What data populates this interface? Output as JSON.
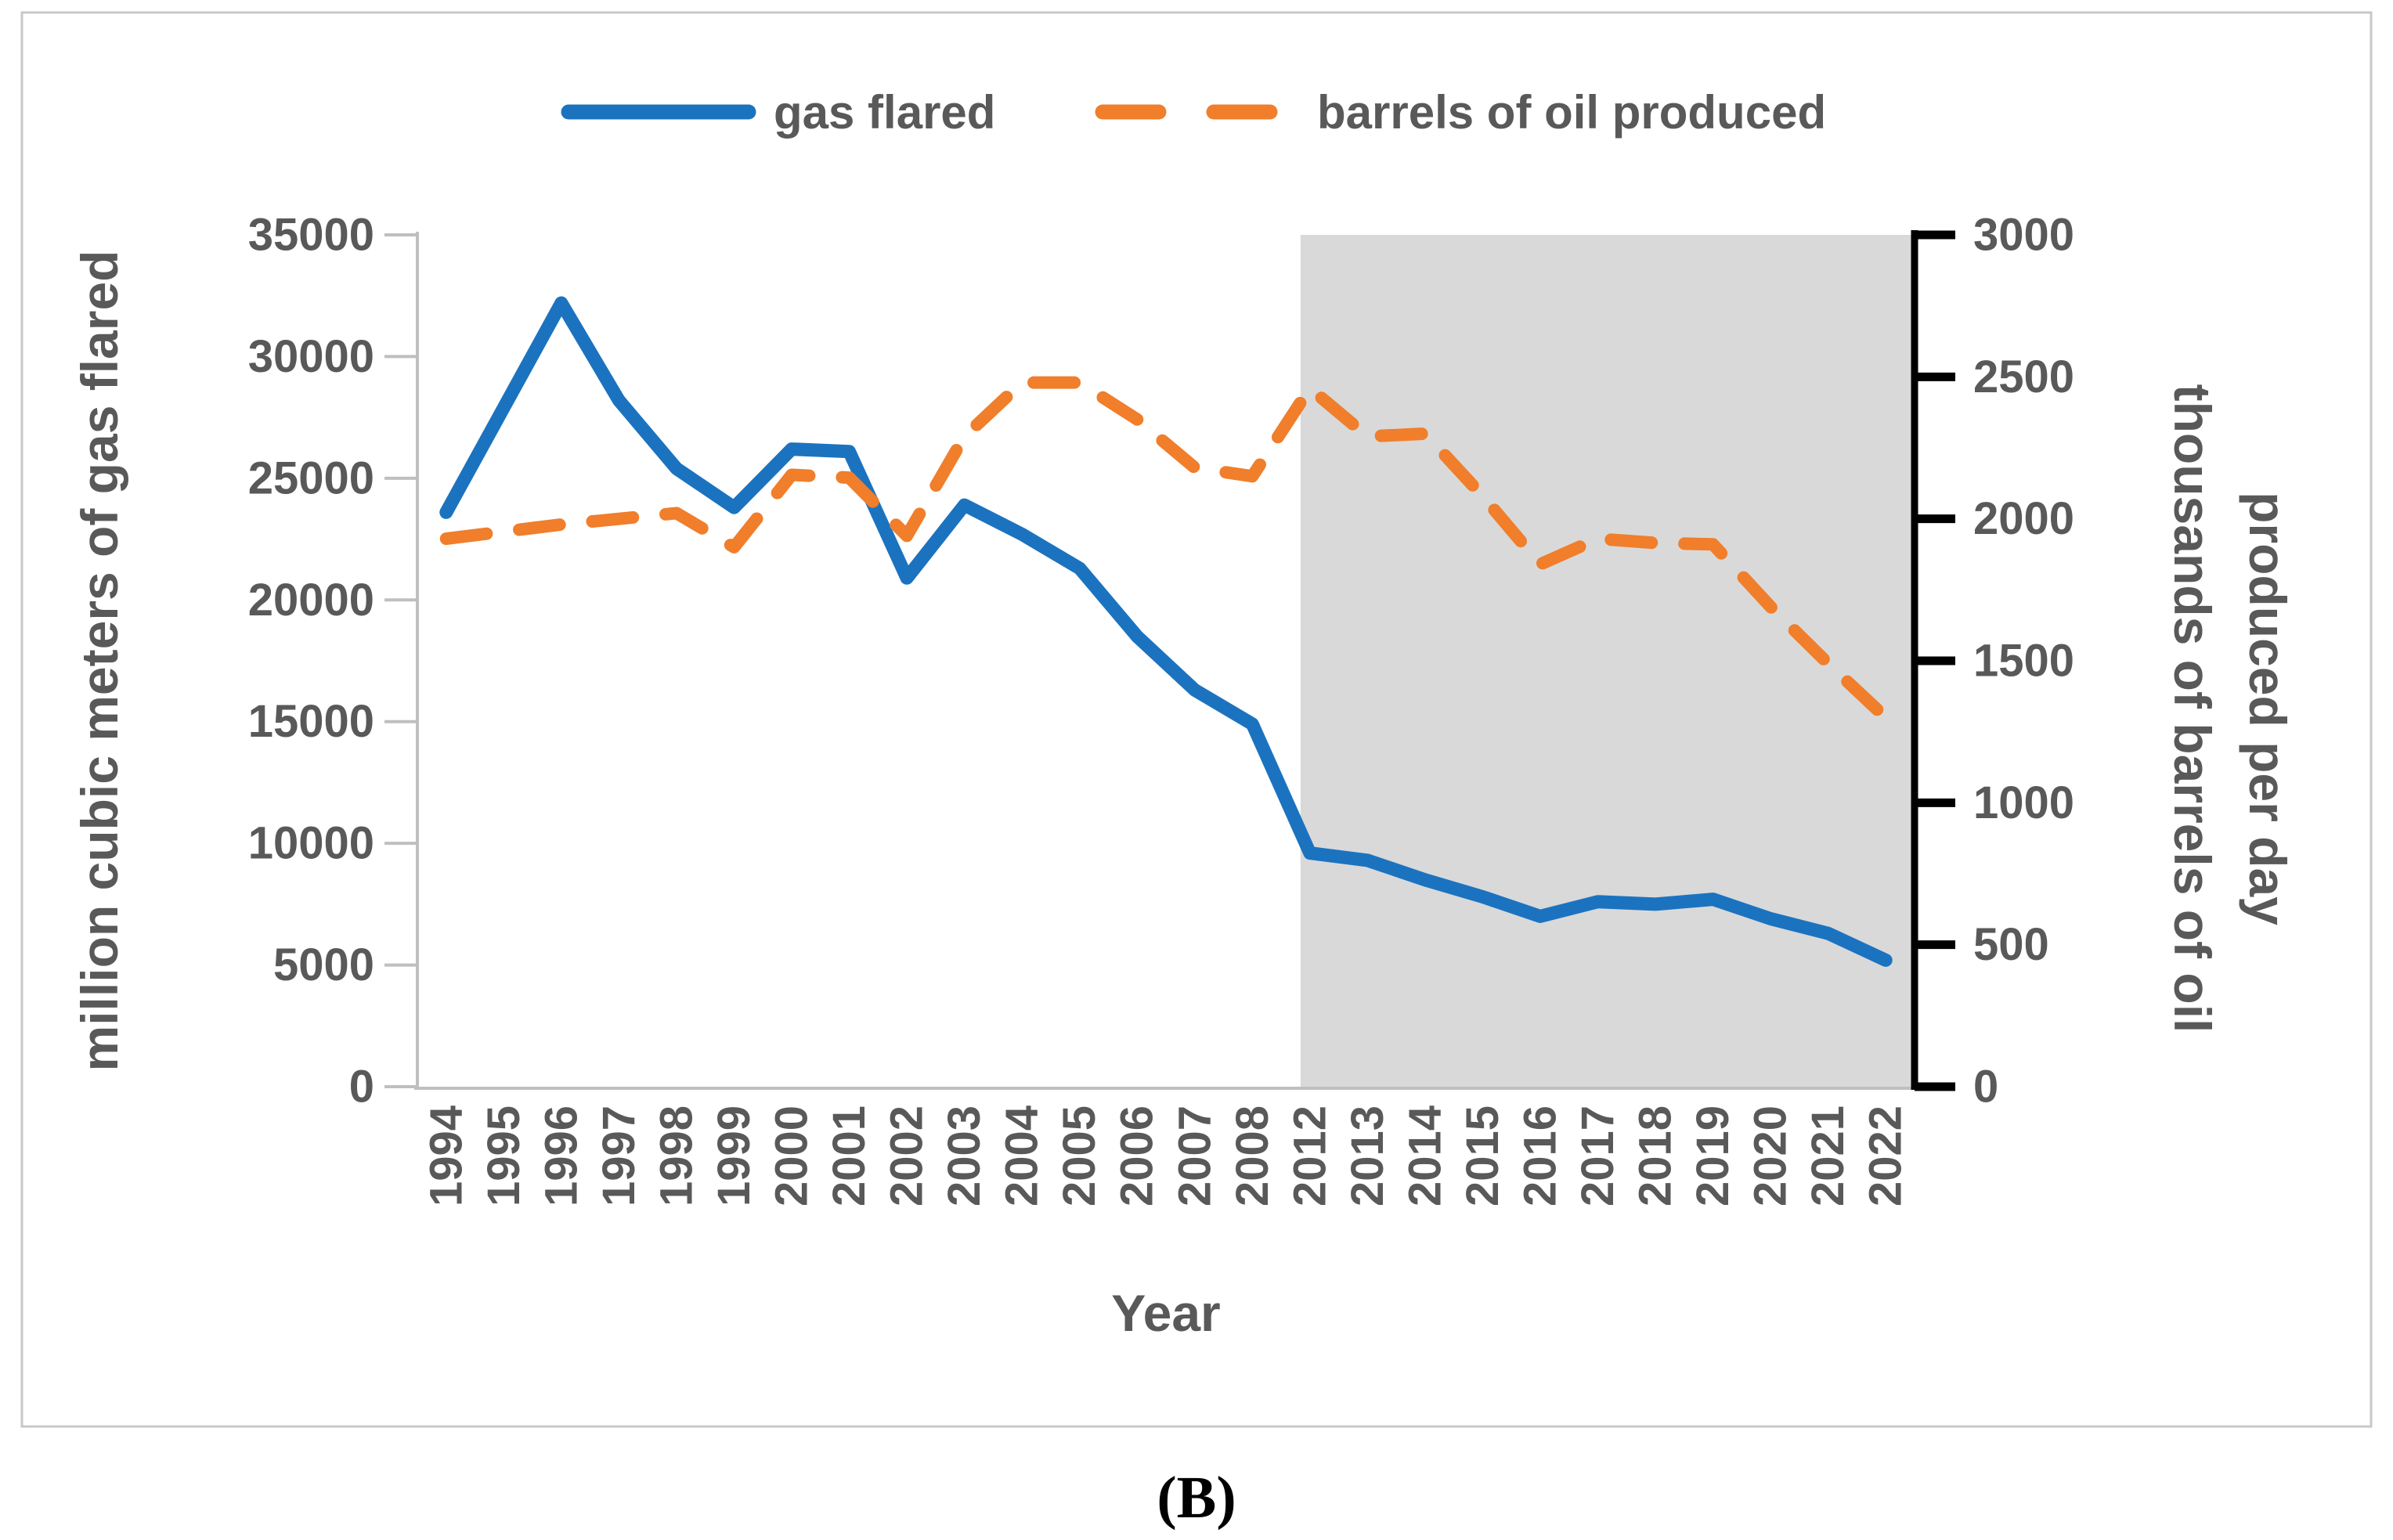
{
  "figure": {
    "caption": "(B)",
    "colors": {
      "gas_flared": "#1B73C0",
      "oil_produced": "#F07E2B",
      "highlight_band": "#D9D9D9",
      "axis_text": "#595959",
      "axis_line": "#BFBFBF",
      "right_axis_line": "#000000",
      "panel_border": "#C8C8C8"
    }
  },
  "legend": {
    "gas_flared": "gas flared",
    "oil_produced": "barrels of oil produced"
  },
  "chart_data": {
    "type": "line",
    "title": "",
    "categories": [
      "1994",
      "1995",
      "1996",
      "1997",
      "1998",
      "1999",
      "2000",
      "2001",
      "2002",
      "2003",
      "2004",
      "2005",
      "2006",
      "2007",
      "2008",
      "2012",
      "2013",
      "2014",
      "2015",
      "2016",
      "2017",
      "2018",
      "2019",
      "2020",
      "2021",
      "2022"
    ],
    "series": [
      {
        "name": "gas flared",
        "axis": "left",
        "style": "solid",
        "color": "#1B73C0",
        "values": [
          23600,
          27900,
          32200,
          28200,
          25400,
          23800,
          26200,
          26100,
          20900,
          23900,
          22700,
          21300,
          18500,
          16300,
          14900,
          9600,
          9300,
          8500,
          7800,
          7000,
          7600,
          7500,
          7700,
          6900,
          6300,
          5200
        ]
      },
      {
        "name": "barrels of oil produced",
        "axis": "right",
        "style": "dashed",
        "color": "#F07E2B",
        "values": [
          1930,
          1955,
          1980,
          2000,
          2020,
          1900,
          2155,
          2145,
          1940,
          2290,
          2480,
          2480,
          2350,
          2180,
          2150,
          2460,
          2290,
          2300,
          2080,
          1840,
          1930,
          1915,
          1910,
          1690,
          1490,
          1300
        ]
      }
    ],
    "left_axis": {
      "label": "million cubic meters of gas flared",
      "min": 0,
      "max": 35000,
      "tick_step": 5000,
      "ticks": [
        35000,
        30000,
        25000,
        20000,
        15000,
        10000,
        5000,
        0
      ]
    },
    "right_axis": {
      "label_line1": "thousands of barrels of oil",
      "label_line2": "produced per day",
      "min": 0,
      "max": 3000,
      "tick_step": 500,
      "ticks": [
        3000,
        2500,
        2000,
        1500,
        1000,
        500,
        0
      ]
    },
    "x_axis": {
      "label": "Year"
    },
    "highlight_region": {
      "from_category": "2012",
      "to_category": "2022"
    },
    "grid": false,
    "legend_position": "top"
  }
}
